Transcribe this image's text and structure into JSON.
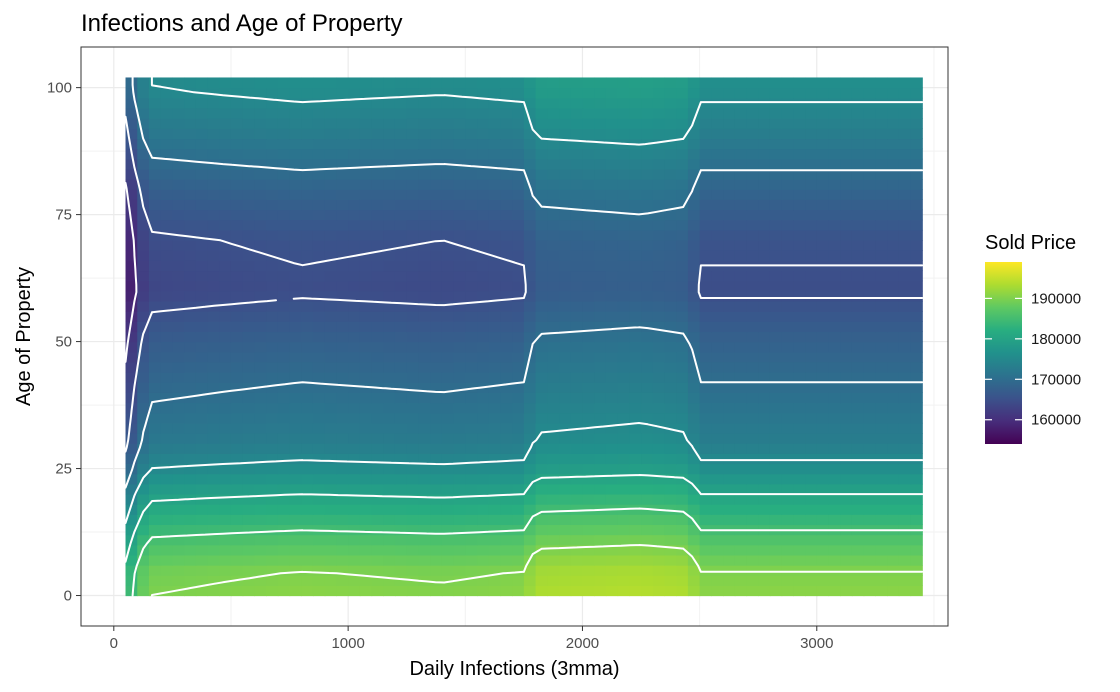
{
  "chart_data": {
    "type": "heatmap",
    "title": "Infections and Age of Property",
    "xlabel": "Daily Infections (3mma)",
    "ylabel": "Age of Property",
    "xlim": [
      -140,
      3560
    ],
    "ylim": [
      -6,
      108
    ],
    "x_ticks": [
      0,
      1000,
      2000,
      3000
    ],
    "x_tick_labels": [
      "0",
      "1000",
      "2000",
      "3000"
    ],
    "y_ticks": [
      0,
      25,
      50,
      75,
      100
    ],
    "y_tick_labels": [
      "0",
      "25",
      "50",
      "75",
      "100"
    ],
    "grid": true,
    "legend": {
      "title": "Sold Price",
      "position": "right",
      "range": [
        154000,
        199000
      ],
      "breaks": [
        160000,
        170000,
        180000,
        190000
      ],
      "break_labels": [
        "160000",
        "170000",
        "180000",
        "190000"
      ],
      "colors": [
        "#440154",
        "#472d7b",
        "#3b528b",
        "#2c728e",
        "#21918c",
        "#28ae80",
        "#5ec962",
        "#addc30",
        "#fde725"
      ]
    },
    "contour_color": "#ffffff",
    "contour_levels": [
      160000,
      165000,
      170000,
      175000,
      180000,
      185000,
      190000
    ],
    "x_range": [
      50,
      3450
    ],
    "y_range": [
      0,
      102
    ],
    "row_values": [
      [
        0,
        191000
      ],
      [
        5,
        190000
      ],
      [
        10,
        187000
      ],
      [
        15,
        183500
      ],
      [
        20,
        180000
      ],
      [
        25,
        176000
      ],
      [
        30,
        173000
      ],
      [
        40,
        170500
      ],
      [
        50,
        168000
      ],
      [
        60,
        164500
      ],
      [
        70,
        165500
      ],
      [
        80,
        168500
      ],
      [
        90,
        172500
      ],
      [
        100,
        176000
      ]
    ],
    "column_offsets": [
      [
        50,
        -9000
      ],
      [
        100,
        -4000
      ],
      [
        150,
        -1000
      ],
      [
        450,
        -500
      ],
      [
        800,
        0
      ],
      [
        1400,
        -500
      ],
      [
        1750,
        0
      ],
      [
        1800,
        2500
      ],
      [
        2250,
        3000
      ],
      [
        2450,
        2500
      ],
      [
        2500,
        0
      ],
      [
        3000,
        0
      ],
      [
        3450,
        0
      ]
    ]
  }
}
